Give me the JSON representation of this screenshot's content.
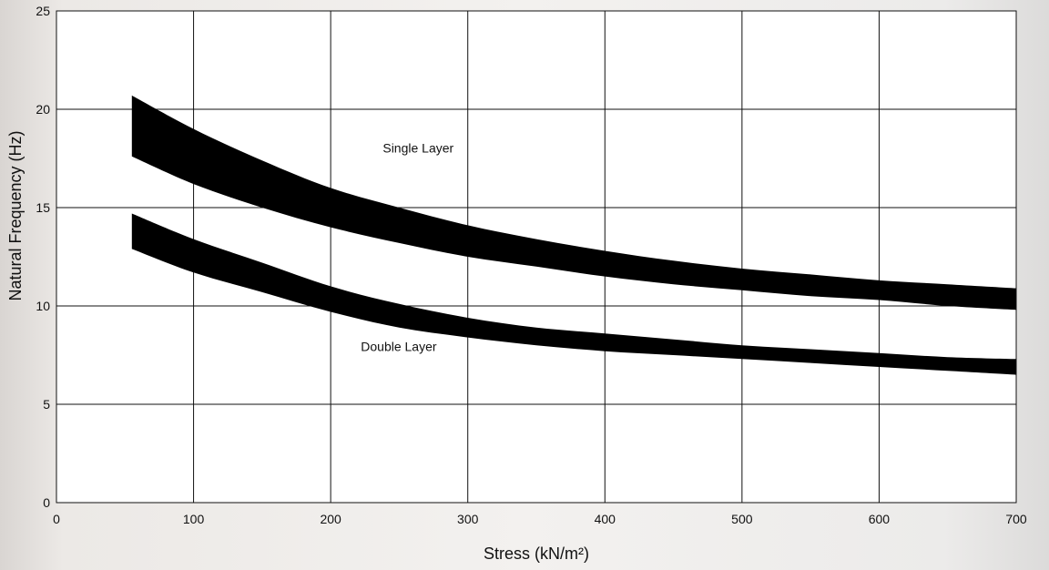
{
  "chart_data": {
    "type": "area",
    "title": "",
    "xlabel": "Stress (kN/m²)",
    "ylabel": "Natural Frequency (Hz)",
    "xlim": [
      0,
      700
    ],
    "ylim": [
      0,
      25
    ],
    "x_ticks": [
      0,
      100,
      200,
      300,
      400,
      500,
      600,
      700
    ],
    "y_ticks": [
      0,
      5,
      10,
      15,
      20,
      25
    ],
    "grid": true,
    "band_color": "#000000",
    "grid_color": "#111111",
    "series": [
      {
        "name": "Single Layer",
        "x": [
          55,
          100,
          150,
          200,
          250,
          300,
          350,
          400,
          450,
          500,
          550,
          600,
          650,
          700
        ],
        "upper": [
          20.7,
          19.0,
          17.4,
          16.0,
          15.0,
          14.1,
          13.4,
          12.8,
          12.3,
          11.9,
          11.6,
          11.3,
          11.1,
          10.9
        ],
        "lower": [
          17.6,
          16.2,
          15.0,
          14.0,
          13.2,
          12.5,
          12.0,
          11.5,
          11.1,
          10.8,
          10.5,
          10.3,
          10.0,
          9.8
        ]
      },
      {
        "name": "Double Layer",
        "x": [
          55,
          100,
          150,
          200,
          250,
          300,
          350,
          400,
          450,
          500,
          550,
          600,
          650,
          700
        ],
        "upper": [
          14.7,
          13.4,
          12.2,
          11.0,
          10.1,
          9.4,
          8.9,
          8.6,
          8.3,
          8.0,
          7.8,
          7.6,
          7.4,
          7.3
        ],
        "lower": [
          12.9,
          11.7,
          10.7,
          9.7,
          8.9,
          8.4,
          8.0,
          7.7,
          7.5,
          7.3,
          7.1,
          6.9,
          6.7,
          6.5
        ]
      }
    ]
  }
}
